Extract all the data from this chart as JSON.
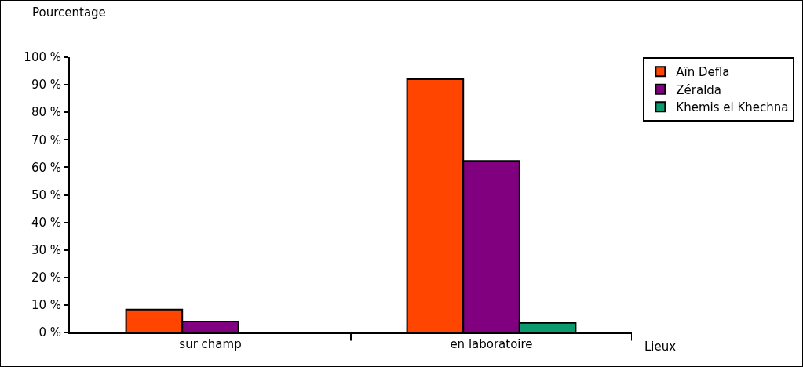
{
  "chart_data": {
    "type": "bar",
    "ylabel": "Pourcentage",
    "xlabel": "Lieux",
    "categories": [
      "sur champ",
      "en laboratoire"
    ],
    "series": [
      {
        "name": "Aïn Defla",
        "color": "#ff4500",
        "values": [
          8.3,
          92
        ]
      },
      {
        "name": "Zéralda",
        "color": "#800080",
        "values": [
          4,
          62.3
        ]
      },
      {
        "name": "Khemis el Khechna",
        "color": "#0a9a6e",
        "values": [
          0,
          3.5
        ]
      }
    ],
    "ylim": [
      0,
      100
    ],
    "yticks": [
      {
        "value": 0,
        "label": "0 %"
      },
      {
        "value": 10,
        "label": "10 %"
      },
      {
        "value": 20,
        "label": "20 %"
      },
      {
        "value": 30,
        "label": "30 %"
      },
      {
        "value": 40,
        "label": "40 %"
      },
      {
        "value": 50,
        "label": "50 %"
      },
      {
        "value": 60,
        "label": "60 %"
      },
      {
        "value": 70,
        "label": "70 %"
      },
      {
        "value": 80,
        "label": "80 %"
      },
      {
        "value": 90,
        "label": "90 %"
      },
      {
        "value": 100,
        "label": "100 %"
      }
    ],
    "grid": false,
    "legend": "top right"
  }
}
